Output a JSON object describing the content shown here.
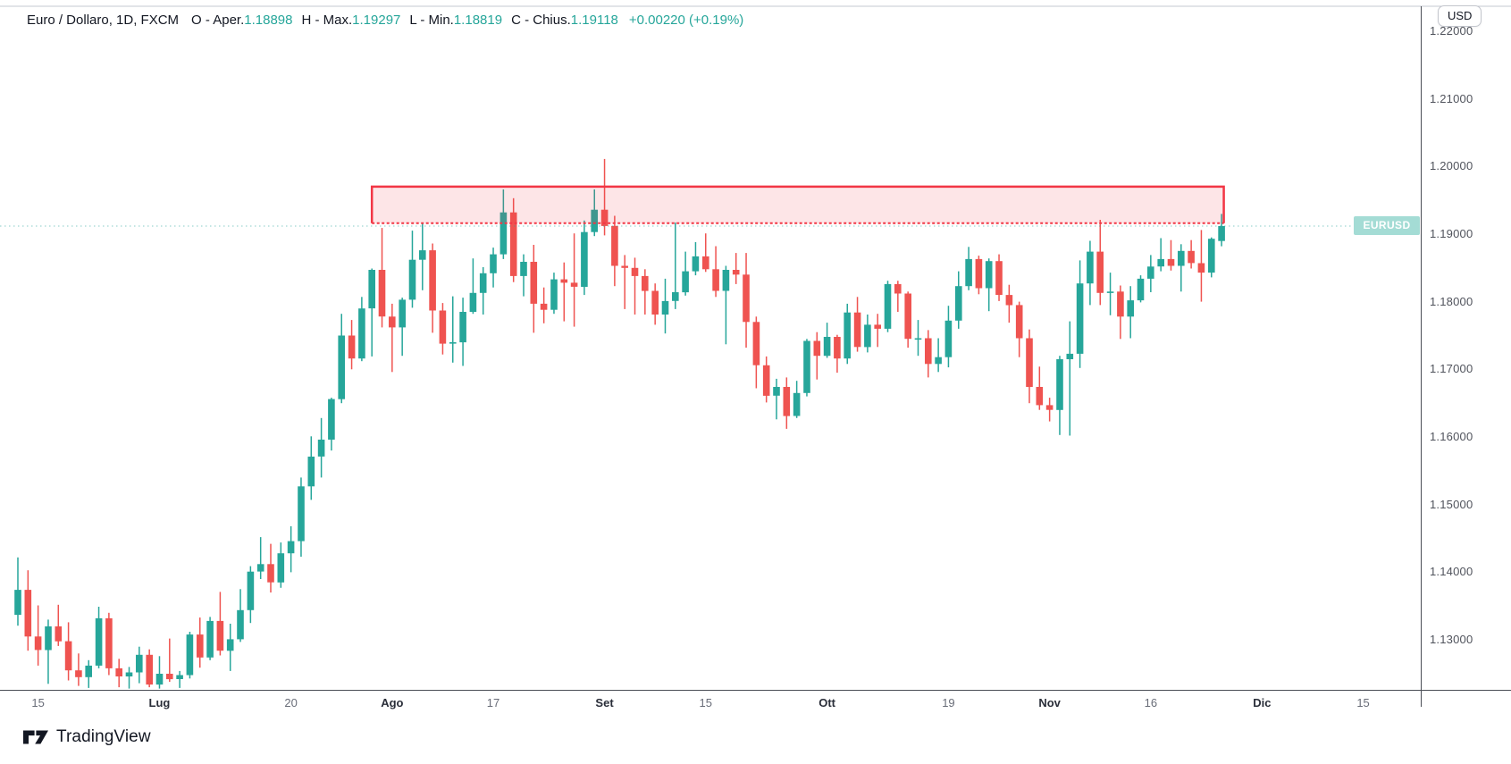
{
  "header": {
    "symbol_title": "Euro / Dollaro, 1D, FXCM",
    "ohlc_fields": [
      {
        "label": "O - Aper.",
        "value": "1.18898"
      },
      {
        "label": "H - Max.",
        "value": "1.19297"
      },
      {
        "label": "L - Min.",
        "value": "1.18819"
      },
      {
        "label": "C - Chius.",
        "value": "1.19118"
      }
    ],
    "change_text": "+0.00220 (+0.19%)",
    "value_color": "#26a69a",
    "label_color": "#131722"
  },
  "toolbar": {
    "currency_button_label": "USD"
  },
  "price_scale": {
    "last_price_tag_text": "EURUSD"
  },
  "footer": {
    "logo_text": "TradingView"
  },
  "chart_data": {
    "type": "candlestick",
    "title": "Euro / Dollaro, 1D, FXCM",
    "symbol": "EURUSD",
    "interval": "1D",
    "exchange": "FXCM",
    "up_color": "#26a69a",
    "down_color": "#ef5350",
    "grid": "off",
    "legend_position": "none",
    "y_axis": {
      "range": [
        1.1226,
        1.2246
      ],
      "tick_step": 0.01,
      "ticks": [
        "1.22000",
        "1.21000",
        "1.20000",
        "1.19000",
        "1.18000",
        "1.17000",
        "1.16000",
        "1.15000",
        "1.14000",
        "1.13000"
      ]
    },
    "x_axis": {
      "ticks": [
        {
          "label": "15",
          "bar": 2,
          "major": false
        },
        {
          "label": "Lug",
          "bar": 14,
          "major": true
        },
        {
          "label": "20",
          "bar": 27,
          "major": false
        },
        {
          "label": "Ago",
          "bar": 37,
          "major": true
        },
        {
          "label": "17",
          "bar": 47,
          "major": false
        },
        {
          "label": "Set",
          "bar": 58,
          "major": true
        },
        {
          "label": "15",
          "bar": 68,
          "major": false
        },
        {
          "label": "Ott",
          "bar": 80,
          "major": true
        },
        {
          "label": "19",
          "bar": 92,
          "major": false
        },
        {
          "label": "Nov",
          "bar": 102,
          "major": true
        },
        {
          "label": "16",
          "bar": 112,
          "major": false
        },
        {
          "label": "Dic",
          "bar": 123,
          "major": true
        },
        {
          "label": "15",
          "bar": 133,
          "major": false
        }
      ]
    },
    "candles_ohlc": [
      [
        1.1337,
        1.1422,
        1.1321,
        1.1374
      ],
      [
        1.1374,
        1.1403,
        1.1284,
        1.1305
      ],
      [
        1.1305,
        1.1351,
        1.1262,
        1.1285
      ],
      [
        1.1285,
        1.133,
        1.1235,
        1.132
      ],
      [
        1.132,
        1.1352,
        1.1291,
        1.1298
      ],
      [
        1.1298,
        1.1326,
        1.124,
        1.1255
      ],
      [
        1.1255,
        1.128,
        1.1232,
        1.1245
      ],
      [
        1.1245,
        1.127,
        1.1229,
        1.1262
      ],
      [
        1.1262,
        1.1349,
        1.1258,
        1.1332
      ],
      [
        1.1332,
        1.134,
        1.1248,
        1.1258
      ],
      [
        1.1258,
        1.1272,
        1.123,
        1.1246
      ],
      [
        1.1246,
        1.126,
        1.1228,
        1.1252
      ],
      [
        1.1252,
        1.129,
        1.1236,
        1.1278
      ],
      [
        1.1278,
        1.1286,
        1.123,
        1.1234
      ],
      [
        1.1234,
        1.1276,
        1.1228,
        1.125
      ],
      [
        1.125,
        1.1302,
        1.1238,
        1.1242
      ],
      [
        1.1242,
        1.1254,
        1.1229,
        1.1248
      ],
      [
        1.1248,
        1.1312,
        1.1243,
        1.1308
      ],
      [
        1.1308,
        1.1333,
        1.1259,
        1.1274
      ],
      [
        1.1274,
        1.1334,
        1.127,
        1.1328
      ],
      [
        1.1328,
        1.1371,
        1.1277,
        1.1284
      ],
      [
        1.1284,
        1.1324,
        1.1254,
        1.1301
      ],
      [
        1.1301,
        1.1375,
        1.1297,
        1.1344
      ],
      [
        1.1344,
        1.1409,
        1.1325,
        1.1401
      ],
      [
        1.1401,
        1.1452,
        1.139,
        1.1412
      ],
      [
        1.1412,
        1.1442,
        1.137,
        1.1385
      ],
      [
        1.1385,
        1.1444,
        1.1377,
        1.1428
      ],
      [
        1.1428,
        1.1468,
        1.14,
        1.1446
      ],
      [
        1.1446,
        1.154,
        1.1423,
        1.1527
      ],
      [
        1.1527,
        1.1601,
        1.1507,
        1.1571
      ],
      [
        1.1571,
        1.1628,
        1.154,
        1.1596
      ],
      [
        1.1596,
        1.1658,
        1.158,
        1.1656
      ],
      [
        1.1656,
        1.1782,
        1.165,
        1.175
      ],
      [
        1.175,
        1.1773,
        1.17,
        1.1716
      ],
      [
        1.1716,
        1.1807,
        1.1712,
        1.179
      ],
      [
        1.179,
        1.1849,
        1.1719,
        1.1847
      ],
      [
        1.1847,
        1.1909,
        1.1762,
        1.1778
      ],
      [
        1.1778,
        1.1797,
        1.1696,
        1.1762
      ],
      [
        1.1762,
        1.1806,
        1.172,
        1.1803
      ],
      [
        1.1803,
        1.1905,
        1.1791,
        1.1862
      ],
      [
        1.1862,
        1.1916,
        1.1817,
        1.1876
      ],
      [
        1.1876,
        1.1886,
        1.1754,
        1.1787
      ],
      [
        1.1787,
        1.1798,
        1.1722,
        1.1738
      ],
      [
        1.1738,
        1.1808,
        1.171,
        1.174
      ],
      [
        1.174,
        1.1806,
        1.1705,
        1.1785
      ],
      [
        1.1785,
        1.1864,
        1.1782,
        1.1813
      ],
      [
        1.1813,
        1.1851,
        1.1781,
        1.1842
      ],
      [
        1.1842,
        1.188,
        1.1821,
        1.187
      ],
      [
        1.187,
        1.1966,
        1.1863,
        1.1932
      ],
      [
        1.1932,
        1.1953,
        1.1829,
        1.1838
      ],
      [
        1.1838,
        1.187,
        1.1808,
        1.1859
      ],
      [
        1.1859,
        1.1884,
        1.1754,
        1.1797
      ],
      [
        1.1797,
        1.1821,
        1.1768,
        1.1788
      ],
      [
        1.1788,
        1.1843,
        1.1782,
        1.1833
      ],
      [
        1.1833,
        1.1858,
        1.1771,
        1.1828
      ],
      [
        1.1828,
        1.1901,
        1.1763,
        1.1822
      ],
      [
        1.1822,
        1.192,
        1.181,
        1.1903
      ],
      [
        1.1903,
        1.1966,
        1.1897,
        1.1936
      ],
      [
        1.1936,
        1.2011,
        1.1898,
        1.1912
      ],
      [
        1.1912,
        1.1927,
        1.1823,
        1.1853
      ],
      [
        1.1853,
        1.1869,
        1.1789,
        1.185
      ],
      [
        1.185,
        1.1865,
        1.1781,
        1.1838
      ],
      [
        1.1838,
        1.1848,
        1.1781,
        1.1816
      ],
      [
        1.1816,
        1.1827,
        1.1766,
        1.1781
      ],
      [
        1.1781,
        1.1834,
        1.1753,
        1.1801
      ],
      [
        1.1801,
        1.1917,
        1.1789,
        1.1814
      ],
      [
        1.1814,
        1.1874,
        1.1809,
        1.1845
      ],
      [
        1.1845,
        1.1888,
        1.1839,
        1.1867
      ],
      [
        1.1867,
        1.1901,
        1.1844,
        1.1848
      ],
      [
        1.1848,
        1.1882,
        1.1807,
        1.1816
      ],
      [
        1.1816,
        1.1853,
        1.1737,
        1.1847
      ],
      [
        1.1847,
        1.1872,
        1.1826,
        1.184
      ],
      [
        1.184,
        1.1872,
        1.1732,
        1.177
      ],
      [
        1.177,
        1.1778,
        1.1672,
        1.1706
      ],
      [
        1.1706,
        1.1719,
        1.1651,
        1.1661
      ],
      [
        1.1661,
        1.1686,
        1.1626,
        1.1674
      ],
      [
        1.1674,
        1.1688,
        1.1612,
        1.1631
      ],
      [
        1.1631,
        1.1683,
        1.1628,
        1.1665
      ],
      [
        1.1665,
        1.1745,
        1.166,
        1.1742
      ],
      [
        1.1742,
        1.1755,
        1.1685,
        1.172
      ],
      [
        1.172,
        1.1769,
        1.1717,
        1.1748
      ],
      [
        1.1748,
        1.1751,
        1.1695,
        1.1716
      ],
      [
        1.1716,
        1.1797,
        1.1708,
        1.1784
      ],
      [
        1.1784,
        1.1807,
        1.1726,
        1.1733
      ],
      [
        1.1733,
        1.1781,
        1.1725,
        1.1766
      ],
      [
        1.1766,
        1.1782,
        1.1733,
        1.176
      ],
      [
        1.176,
        1.1831,
        1.1755,
        1.1826
      ],
      [
        1.1826,
        1.1831,
        1.1785,
        1.1812
      ],
      [
        1.1812,
        1.1815,
        1.1732,
        1.1745
      ],
      [
        1.1745,
        1.1773,
        1.172,
        1.1746
      ],
      [
        1.1746,
        1.1758,
        1.1688,
        1.1708
      ],
      [
        1.1708,
        1.1746,
        1.1696,
        1.1718
      ],
      [
        1.1718,
        1.1794,
        1.1703,
        1.1772
      ],
      [
        1.1772,
        1.1845,
        1.176,
        1.1823
      ],
      [
        1.1823,
        1.1881,
        1.1817,
        1.1863
      ],
      [
        1.1863,
        1.1868,
        1.1811,
        1.182
      ],
      [
        1.182,
        1.1864,
        1.1786,
        1.186
      ],
      [
        1.186,
        1.187,
        1.1801,
        1.181
      ],
      [
        1.181,
        1.1825,
        1.1769,
        1.1795
      ],
      [
        1.1795,
        1.18,
        1.1718,
        1.1746
      ],
      [
        1.1746,
        1.1759,
        1.165,
        1.1674
      ],
      [
        1.1674,
        1.1704,
        1.164,
        1.1647
      ],
      [
        1.1647,
        1.1658,
        1.1623,
        1.164
      ],
      [
        1.164,
        1.172,
        1.1603,
        1.1715
      ],
      [
        1.1715,
        1.1771,
        1.1602,
        1.1723
      ],
      [
        1.1723,
        1.1861,
        1.1702,
        1.1827
      ],
      [
        1.1827,
        1.189,
        1.1795,
        1.1874
      ],
      [
        1.1874,
        1.1921,
        1.1795,
        1.1813
      ],
      [
        1.1813,
        1.1843,
        1.178,
        1.1815
      ],
      [
        1.1815,
        1.1824,
        1.1745,
        1.1778
      ],
      [
        1.1778,
        1.1823,
        1.1746,
        1.1802
      ],
      [
        1.1802,
        1.1839,
        1.1799,
        1.1834
      ],
      [
        1.1834,
        1.1869,
        1.1814,
        1.1852
      ],
      [
        1.1852,
        1.1894,
        1.1845,
        1.1863
      ],
      [
        1.1863,
        1.1891,
        1.1846,
        1.1853
      ],
      [
        1.1853,
        1.1885,
        1.1815,
        1.1875
      ],
      [
        1.1875,
        1.1891,
        1.1849,
        1.1857
      ],
      [
        1.1857,
        1.1906,
        1.18,
        1.1843
      ],
      [
        1.1843,
        1.1895,
        1.1836,
        1.1893
      ],
      [
        1.18898,
        1.19297,
        1.18819,
        1.19118
      ]
    ],
    "annotations": {
      "resistance_zone": {
        "shape": "rectangle",
        "bar_start": 35,
        "bar_end": 119,
        "price_top": 1.197,
        "price_bottom": 1.1916,
        "stroke": "#f23645",
        "fill": "rgba(242,54,69,0.13)"
      },
      "last_price_line": {
        "price": 1.19118,
        "style": "dotted",
        "color": "#26a69a",
        "label": "EURUSD"
      }
    }
  }
}
